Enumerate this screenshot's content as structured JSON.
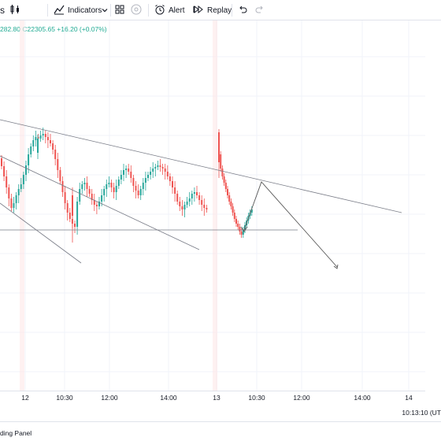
{
  "toolbar": {
    "chart_type_icon": "candles-icon",
    "indicators_label": "Indicators",
    "indicators_icon": "indicators-icon",
    "dropdown_icon": "chevron-down-icon",
    "templates_icon": "layout-grid-icon",
    "objects_icon": "circle-icon",
    "alert_label": "Alert",
    "alert_icon": "alarm-clock-icon",
    "replay_label": "Replay",
    "replay_icon": "replay-icon",
    "undo_icon": "undo-icon",
    "redo_icon": "redo-icon",
    "symbol_fragment": "s"
  },
  "legend": {
    "ohlc_text": "282.80  C22305.65  +16.20 (+0.07%)"
  },
  "x_axis": {
    "ticks": [
      {
        "label": "12",
        "pos": 32
      },
      {
        "label": "10:30",
        "pos": 82
      },
      {
        "label": "12:00",
        "pos": 139
      },
      {
        "label": "14:00",
        "pos": 214
      },
      {
        "label": "13",
        "pos": 275
      },
      {
        "label": "10:30",
        "pos": 326
      },
      {
        "label": "12:00",
        "pos": 383
      },
      {
        "label": "14:00",
        "pos": 460
      },
      {
        "label": "14",
        "pos": 519
      }
    ]
  },
  "status": {
    "clock": "10:13:10 (UT",
    "panel_label": "ding Panel"
  },
  "colors": {
    "up": "#26a69a",
    "down": "#ef5350",
    "line": "#787b86",
    "accent": "#2962ff"
  }
}
